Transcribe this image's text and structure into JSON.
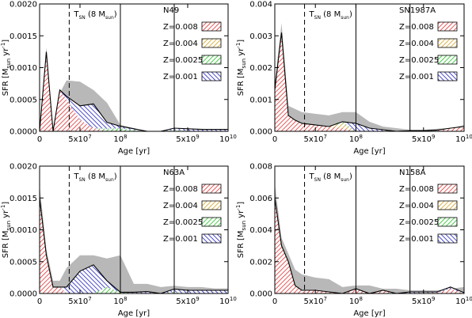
{
  "chart_data": [
    {
      "type": "area",
      "title": "N49",
      "xlabel": "Age [yr]",
      "ylabel": "SFR [M_sun yr^-1]",
      "ylabel_main": "SFR [M",
      "ylabel_sub": "sun",
      "ylabel_unit": " yr",
      "ylabel_exp": "-1",
      "ylabel_close": "]",
      "ylim": [
        0,
        0.002
      ],
      "yticks": [
        "0.0000",
        "0.0005",
        "0.0010",
        "0.0015",
        "0.0020"
      ],
      "ytick_values": [
        0,
        0.0005,
        0.001,
        0.0015,
        0.002
      ],
      "x": [
        0,
        0.25,
        0.5,
        0.75,
        1,
        1.5,
        2,
        2.5,
        3,
        3.5,
        4,
        4.5,
        5,
        5.5,
        6,
        6.5,
        7
      ],
      "envelope_upper": [
        0,
        0.00132,
        0.0,
        0.0006,
        0.0008,
        0.00078,
        0.00065,
        0.00045,
        0.0001,
        5e-05,
        0.0,
        0.0,
        5e-05,
        4e-05,
        4e-05,
        3e-05,
        3e-05
      ],
      "envelope_lower": [
        0,
        0.001,
        0.0,
        5e-05,
        5e-05,
        5e-05,
        5e-05,
        0.0,
        0.0,
        0.0,
        0.0,
        0.0,
        0.0,
        0.0,
        0.0,
        0.0,
        0.0
      ],
      "series": [
        {
          "name": "Z=0.008",
          "color": "#e03030",
          "values": [
            0,
            0.00125,
            0.0,
            0.00065,
            0.0005,
            0.00018,
            5e-05,
            0.0,
            0.0,
            0.0,
            0.0,
            0.0,
            0.0,
            0.0,
            0.0,
            0.0,
            0.0
          ]
        },
        {
          "name": "Z=0.004",
          "color": "#d4a020",
          "values": [
            0,
            0,
            0,
            0,
            0,
            0,
            0,
            0,
            0,
            0,
            0,
            0,
            0,
            0,
            0,
            0,
            0
          ]
        },
        {
          "name": "Z=0.0025",
          "color": "#20c020",
          "values": [
            0,
            0,
            0,
            0,
            0,
            0,
            0,
            4e-05,
            5e-05,
            2e-05,
            0,
            0,
            2e-05,
            1e-05,
            0,
            0,
            0
          ]
        },
        {
          "name": "Z=0.001",
          "color": "#2020c0",
          "values": [
            0,
            0,
            0,
            0,
            5e-05,
            0.00022,
            0.00038,
            0.0001,
            3e-05,
            2e-05,
            0,
            0,
            3e-05,
            3e-05,
            3e-05,
            3e-05,
            3e-05
          ]
        }
      ]
    },
    {
      "type": "area",
      "title": "SN1987A",
      "xlabel": "Age [yr]",
      "ylabel": "SFR [M_sun yr^-1]",
      "ylabel_main": "SFR [M",
      "ylabel_sub": "sun",
      "ylabel_unit": " yr",
      "ylabel_exp": "-1",
      "ylabel_close": "]",
      "ylim": [
        0,
        0.004
      ],
      "yticks": [
        "0.000",
        "0.001",
        "0.002",
        "0.003",
        "0.004"
      ],
      "ytick_values": [
        0,
        0.001,
        0.002,
        0.003,
        0.004
      ],
      "x": [
        0,
        0.25,
        0.5,
        0.75,
        1,
        1.5,
        2,
        2.5,
        3,
        3.5,
        4,
        4.5,
        5,
        5.5,
        6,
        6.5,
        7
      ],
      "envelope_upper": [
        0.0015,
        0.0034,
        0.0008,
        0.0007,
        0.0006,
        0.00055,
        0.0005,
        0.0006,
        0.0006,
        0.0003,
        0.00015,
        0.0001,
        5e-05,
        5e-05,
        8e-05,
        0.0001,
        0.0002
      ],
      "envelope_lower": [
        0.0005,
        0.0028,
        0.0003,
        0.00015,
        8e-05,
        5e-05,
        3e-05,
        0.0,
        0.0,
        0.0,
        0.0,
        0.0,
        0.0,
        0.0,
        0.0,
        0.0,
        0.0
      ],
      "series": [
        {
          "name": "Z=0.008",
          "color": "#e03030",
          "values": [
            0.0013,
            0.0031,
            0.0005,
            0.00035,
            0.00025,
            0.0002,
            0.00015,
            0.0001,
            0.0,
            0.0,
            0.0,
            0.0,
            2e-05,
            2e-05,
            2e-05,
            0.0001,
            0.00015
          ]
        },
        {
          "name": "Z=0.004",
          "color": "#d4a020",
          "values": [
            0,
            0,
            0,
            0,
            0,
            0,
            0,
            0.00015,
            0.0,
            0,
            0,
            0,
            0,
            0,
            0,
            0,
            0
          ]
        },
        {
          "name": "Z=0.0025",
          "color": "#20c020",
          "values": [
            0,
            0,
            0,
            0,
            0,
            0,
            0,
            5e-05,
            0,
            0,
            0,
            0,
            0,
            0,
            0,
            0,
            0
          ]
        },
        {
          "name": "Z=0.001",
          "color": "#2020c0",
          "values": [
            0,
            0,
            0,
            0,
            0,
            0,
            0,
            0,
            0.00025,
            0.0001,
            5e-05,
            0.0,
            0.0,
            0.0,
            2e-05,
            0.0,
            0.0
          ]
        }
      ]
    },
    {
      "type": "area",
      "title": "N63A",
      "xlabel": "Age [yr]",
      "ylabel": "SFR [M_sun yr^-1]",
      "ylabel_main": "SFR [M",
      "ylabel_sub": "sun",
      "ylabel_unit": " yr",
      "ylabel_exp": "-1",
      "ylabel_close": "]",
      "ylim": [
        0,
        0.002
      ],
      "yticks": [
        "0.0000",
        "0.0005",
        "0.0010",
        "0.0015",
        "0.0020"
      ],
      "ytick_values": [
        0,
        0.0005,
        0.001,
        0.0015,
        0.002
      ],
      "x": [
        0,
        0.25,
        0.5,
        0.75,
        1,
        1.5,
        2,
        2.5,
        3,
        3.5,
        4,
        4.5,
        5,
        5.5,
        6,
        6.5,
        7
      ],
      "envelope_upper": [
        0.0017,
        0.0007,
        0.0002,
        0.0002,
        0.0004,
        0.0006,
        0.0006,
        0.00055,
        0.0006,
        0.00015,
        0.00015,
        0.0001,
        0.00012,
        0.0001,
        0.0001,
        8e-05,
        8e-05
      ],
      "envelope_lower": [
        0.001,
        0.0004,
        0.0,
        0.0,
        0.0,
        0.0,
        0.0,
        0.0,
        0.0,
        0.0,
        0.0,
        0.0,
        0.0,
        0.0,
        0.0,
        0.0,
        0.0
      ],
      "series": [
        {
          "name": "Z=0.008",
          "color": "#e03030",
          "values": [
            0.0015,
            0.0006,
            0.0001,
            0.0001,
            0.0,
            0.0,
            0.0,
            0.0,
            0.0,
            0.0,
            0.0,
            0.0,
            0.0,
            0.0,
            0.0,
            0.0,
            0.0
          ]
        },
        {
          "name": "Z=0.004",
          "color": "#d4a020",
          "values": [
            0,
            0,
            0,
            0,
            0,
            0,
            0,
            0,
            0,
            0,
            0,
            0,
            0,
            0,
            0,
            0,
            0
          ]
        },
        {
          "name": "Z=0.0025",
          "color": "#20c020",
          "values": [
            0,
            0,
            0,
            0,
            0,
            0,
            0,
            0.0001,
            2e-05,
            0,
            0,
            0,
            2e-05,
            0,
            0,
            0,
            0
          ]
        },
        {
          "name": "Z=0.001",
          "color": "#2020c0",
          "values": [
            0,
            0,
            0,
            0,
            0.0001,
            0.00035,
            0.00045,
            0.0001,
            0.0,
            2e-05,
            3e-05,
            0.0,
            5e-05,
            5e-05,
            5e-05,
            5e-05,
            5e-05
          ]
        }
      ]
    },
    {
      "type": "area",
      "title": "N158A",
      "xlabel": "Age [yr]",
      "ylabel": "SFR [M_sun yr^-1]",
      "ylabel_main": "SFR [M",
      "ylabel_sub": "sun",
      "ylabel_unit": " yr",
      "ylabel_exp": "-1",
      "ylabel_close": "]",
      "ylim": [
        0,
        0.008
      ],
      "yticks": [
        "0.000",
        "0.002",
        "0.004",
        "0.006",
        "0.008"
      ],
      "ytick_values": [
        0,
        0.002,
        0.004,
        0.006,
        0.008
      ],
      "x": [
        0,
        0.25,
        0.5,
        0.75,
        1,
        1.5,
        2,
        2.5,
        3,
        3.5,
        4,
        4.5,
        5,
        5.5,
        6,
        6.5,
        7
      ],
      "envelope_upper": [
        0.0069,
        0.0035,
        0.0025,
        0.0015,
        0.0012,
        0.001,
        0.0009,
        0.0004,
        0.0005,
        0.0005,
        0.0003,
        0.0003,
        0.0002,
        0.0002,
        0.0002,
        0.0003,
        0.0004
      ],
      "envelope_lower": [
        0.0055,
        0.0025,
        0.0017,
        0.0,
        0.0,
        0.0,
        0.0,
        0.0,
        0.0,
        0.0,
        0.0,
        0.0,
        0.0,
        0.0,
        0.0,
        0.0,
        0.0
      ],
      "series": [
        {
          "name": "Z=0.008",
          "color": "#e03030",
          "values": [
            0.006,
            0.003,
            0.002,
            0.0005,
            0.0002,
            0.0002,
            0.0001,
            0.0,
            0.0003,
            0.0,
            0.0002,
            0.0,
            0.0,
            5e-05,
            5e-05,
            0.0003,
            0.0
          ]
        },
        {
          "name": "Z=0.004",
          "color": "#d4a020",
          "values": [
            0,
            0,
            0,
            0,
            0,
            0,
            0,
            0,
            0,
            0,
            0,
            0,
            0,
            0,
            0,
            0,
            0
          ]
        },
        {
          "name": "Z=0.0025",
          "color": "#20c020",
          "values": [
            0,
            0,
            0,
            0,
            0,
            0,
            0,
            0,
            0,
            0,
            0,
            0,
            0,
            0,
            0,
            0,
            0
          ]
        },
        {
          "name": "Z=0.001",
          "color": "#2020c0",
          "values": [
            0,
            0,
            0,
            0,
            0,
            0,
            0,
            0,
            0,
            0,
            0,
            0,
            0.0001,
            5e-05,
            5e-05,
            0.0001,
            5e-05
          ]
        }
      ]
    }
  ],
  "xaxis": {
    "ticks": [
      {
        "x": 0,
        "label": "0"
      },
      {
        "x": 1.5,
        "label": "5x10",
        "exp": "7"
      },
      {
        "x": 3,
        "label": "10",
        "exp": "8"
      },
      {
        "x": 5.5,
        "label": "5x10",
        "exp": "9"
      },
      {
        "x": 7,
        "label": "10",
        "exp": "10"
      }
    ],
    "xlim": [
      0,
      7
    ],
    "sn_marker_x": 1.1,
    "solid_lines_x": [
      3,
      5
    ]
  },
  "sn_label": {
    "t": "T",
    "t_sub": "SN",
    "mass": " (8 M",
    "mass_sub": "sun",
    "close": ")"
  }
}
